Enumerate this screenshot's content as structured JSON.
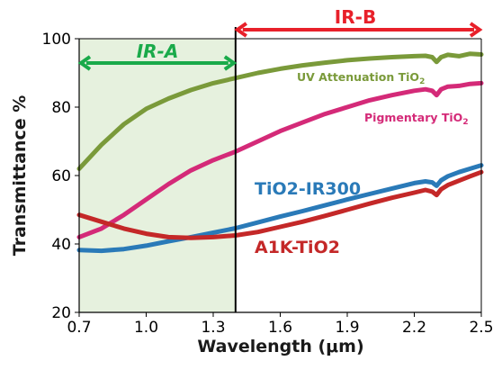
{
  "chart_data": {
    "type": "line",
    "xlabel": "Wavelength (μm)",
    "ylabel": "Transmittance %",
    "xlim": [
      0.7,
      2.5
    ],
    "ylim": [
      20,
      100
    ],
    "xticks": [
      "0.7",
      "1.0",
      "1.3",
      "1.6",
      "1.9",
      "2.2",
      "2.5"
    ],
    "yticks": [
      "20",
      "40",
      "60",
      "80",
      "100"
    ],
    "grid": false,
    "regions": [
      {
        "name": "IR-A",
        "x_range": [
          0.7,
          1.4
        ],
        "color": "#1aaa4a",
        "shaded": true,
        "shade_color": "#e6f1de"
      },
      {
        "name": "IR-B",
        "x_range": [
          1.4,
          2.5
        ],
        "color": "#e8202a",
        "shaded": false
      }
    ],
    "divider_x": 1.4,
    "series": [
      {
        "name": "UV Attenuation TiO",
        "name_subscript": "2",
        "color": "#7a9a3a",
        "x": [
          0.7,
          0.8,
          0.9,
          1.0,
          1.1,
          1.2,
          1.3,
          1.4,
          1.5,
          1.6,
          1.7,
          1.8,
          1.9,
          2.0,
          2.1,
          2.2,
          2.25,
          2.28,
          2.3,
          2.32,
          2.35,
          2.4,
          2.45,
          2.5
        ],
        "y": [
          62,
          69,
          75,
          79.5,
          82.5,
          85,
          87,
          88.5,
          90,
          91.2,
          92.2,
          93,
          93.7,
          94.2,
          94.6,
          94.9,
          95,
          94.6,
          93.2,
          94.6,
          95.3,
          94.9,
          95.6,
          95.4
        ]
      },
      {
        "name": "Pigmentary TiO",
        "name_subscript": "2",
        "color": "#d42a78",
        "x": [
          0.7,
          0.8,
          0.9,
          1.0,
          1.1,
          1.2,
          1.3,
          1.4,
          1.5,
          1.6,
          1.7,
          1.8,
          1.9,
          2.0,
          2.1,
          2.2,
          2.25,
          2.28,
          2.3,
          2.32,
          2.35,
          2.4,
          2.45,
          2.5
        ],
        "y": [
          42,
          44.5,
          48.5,
          53,
          57.5,
          61.5,
          64.5,
          67,
          70,
          73,
          75.5,
          78,
          80,
          82,
          83.5,
          84.8,
          85.2,
          84.8,
          83.5,
          85.2,
          86,
          86.2,
          86.8,
          87
        ]
      },
      {
        "name": "TiO2-IR300",
        "color": "#2a7ab8",
        "x": [
          0.7,
          0.8,
          0.9,
          1.0,
          1.1,
          1.2,
          1.3,
          1.4,
          1.5,
          1.6,
          1.7,
          1.8,
          1.9,
          2.0,
          2.1,
          2.2,
          2.25,
          2.28,
          2.3,
          2.32,
          2.35,
          2.4,
          2.45,
          2.5
        ],
        "y": [
          38.2,
          38,
          38.5,
          39.5,
          40.8,
          42,
          43.3,
          44.6,
          46.3,
          48,
          49.6,
          51.3,
          53,
          54.6,
          56.2,
          57.8,
          58.3,
          58,
          57,
          58.6,
          59.8,
          61,
          62,
          63
        ]
      },
      {
        "name": "A1K-TiO2",
        "color": "#c42828",
        "x": [
          0.7,
          0.8,
          0.9,
          1.0,
          1.1,
          1.2,
          1.3,
          1.4,
          1.5,
          1.6,
          1.7,
          1.8,
          1.9,
          2.0,
          2.1,
          2.2,
          2.25,
          2.28,
          2.3,
          2.32,
          2.35,
          2.4,
          2.45,
          2.5
        ],
        "y": [
          48.5,
          46.5,
          44.5,
          43,
          42,
          41.8,
          42,
          42.5,
          43.5,
          45,
          46.5,
          48.2,
          50,
          51.8,
          53.5,
          55,
          55.8,
          55.3,
          54.3,
          56,
          57.2,
          58.5,
          59.8,
          61
        ]
      }
    ]
  }
}
